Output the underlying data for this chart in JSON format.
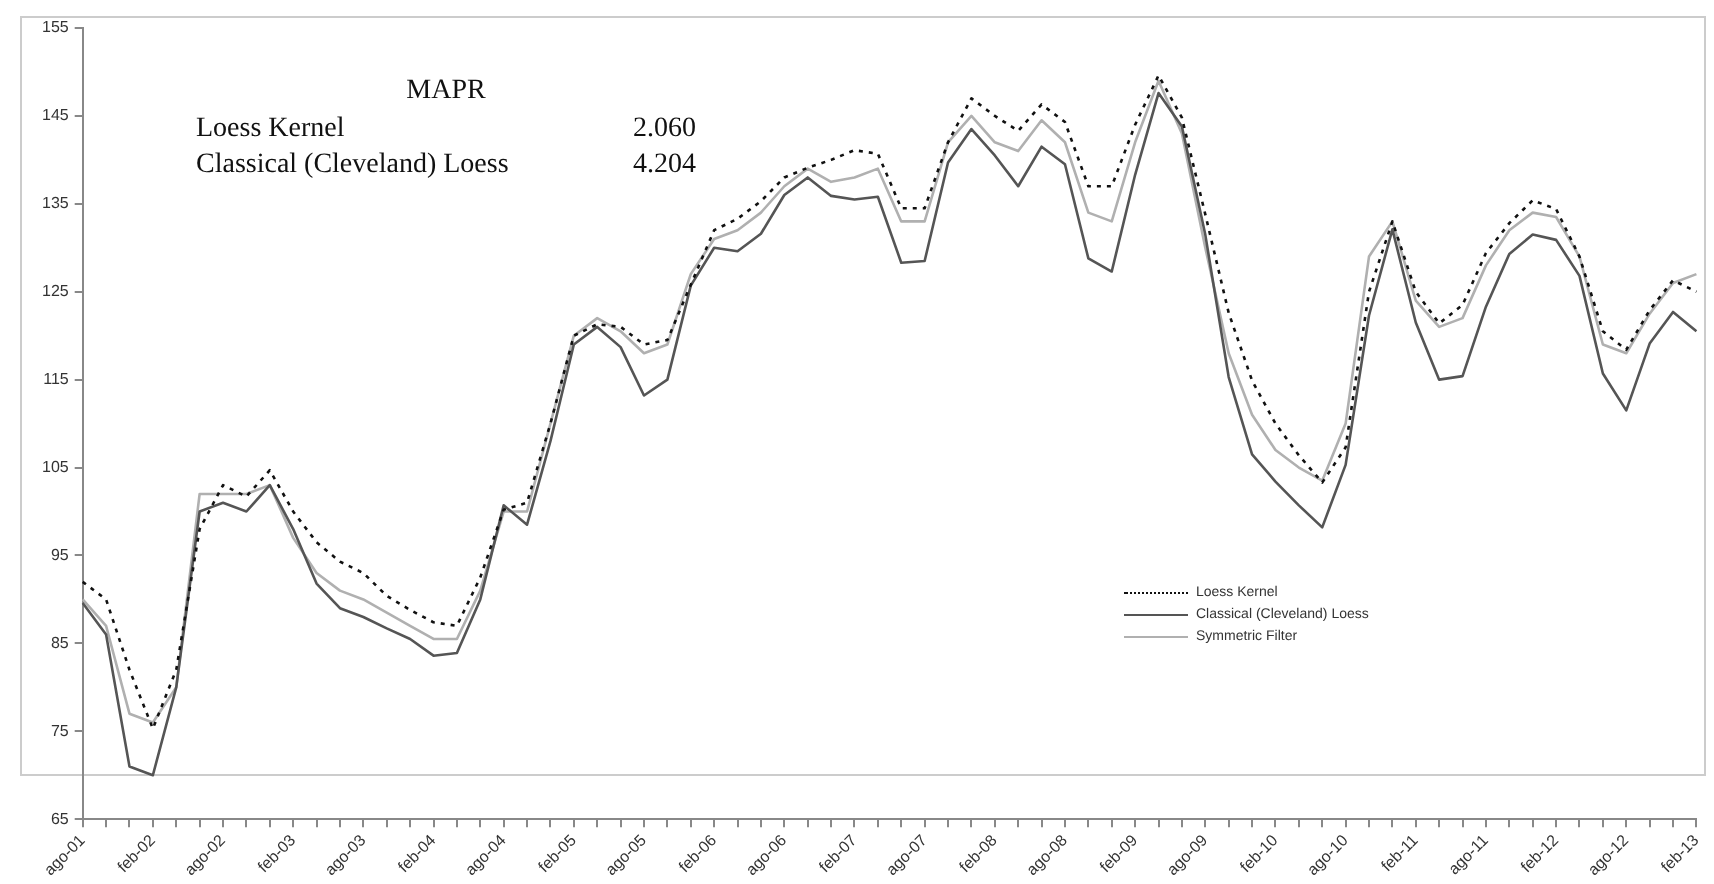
{
  "chart_data": {
    "type": "line",
    "categories": [
      "ago-01",
      null,
      null,
      "feb-02",
      null,
      null,
      "ago-02",
      null,
      null,
      "feb-03",
      null,
      null,
      "ago-03",
      null,
      null,
      "feb-04",
      null,
      null,
      "ago-04",
      null,
      null,
      "feb-05",
      null,
      null,
      "ago-05",
      null,
      null,
      "feb-06",
      null,
      null,
      "ago-06",
      null,
      null,
      "feb-07",
      null,
      null,
      "ago-07",
      null,
      null,
      "feb-08",
      null,
      null,
      "ago-08",
      null,
      null,
      "feb-09",
      null,
      null,
      "ago-09",
      null,
      null,
      "feb-10",
      null,
      null,
      "ago-10",
      null,
      null,
      "feb-11",
      null,
      null,
      "ago-11",
      null,
      null,
      "feb-12",
      null,
      null,
      "ago-12",
      null,
      null,
      "feb-13"
    ],
    "series": [
      {
        "name": "Loess Kernel",
        "color": "#111111",
        "line_style": "dotted",
        "values": [
          92,
          90,
          82,
          75.3,
          82,
          98,
          103,
          101.7,
          104.7,
          100,
          96.5,
          94.3,
          93,
          90.4,
          88.8,
          87.4,
          87,
          92.5,
          100.2,
          101,
          110,
          120,
          121.3,
          121,
          119,
          119.5,
          125.8,
          132,
          133.3,
          135.3,
          138,
          139.1,
          140,
          141.1,
          140.7,
          134.5,
          134.5,
          142,
          147,
          145,
          143.3,
          146.3,
          144.3,
          137,
          137,
          144,
          149.6,
          144.8,
          133.8,
          122.6,
          114.9,
          110,
          106.4,
          103.3,
          107.3,
          125,
          133,
          125,
          121.4,
          123.5,
          129.4,
          132.8,
          135.4,
          134.4,
          129,
          120.5,
          118.4,
          122.9,
          126.3,
          125
        ]
      },
      {
        "name": "Classical (Cleveland) Loess",
        "color": "#555555",
        "line_style": "solid",
        "values": [
          89.6,
          86,
          71,
          70,
          80,
          100,
          101,
          100,
          103,
          98,
          91.8,
          89,
          88,
          86.7,
          85.5,
          83.6,
          83.9,
          90,
          100.7,
          98.5,
          108,
          119,
          121,
          118.7,
          113.2,
          115,
          125.7,
          130,
          129.6,
          131.6,
          136,
          138,
          135.9,
          135.5,
          135.8,
          128.3,
          128.5,
          139.7,
          143.5,
          140.5,
          137,
          141.5,
          139.5,
          128.8,
          127.3,
          138.3,
          147.6,
          143.8,
          131.5,
          115.3,
          106.5,
          103.4,
          100.7,
          98.2,
          105.3,
          122.3,
          132.1,
          121.5,
          115,
          115.4,
          123.3,
          129.3,
          131.5,
          130.9,
          126.8,
          115.7,
          111.5,
          119.1,
          122.7,
          120.5
        ]
      },
      {
        "name": "Symmetric Filter",
        "color": "#b0b0b0",
        "line_style": "solid",
        "values": [
          90,
          87,
          77,
          76,
          80,
          102,
          102,
          102,
          103,
          97,
          93,
          91,
          90,
          88.5,
          87,
          85.5,
          85.5,
          91,
          100,
          100,
          110,
          120,
          122,
          120.5,
          118,
          119,
          127,
          131,
          132,
          134,
          137,
          139,
          137.5,
          138,
          139,
          133,
          133,
          142,
          145,
          142,
          141,
          144.5,
          142,
          134,
          133,
          142,
          149,
          143,
          130,
          118,
          111,
          107,
          105,
          103.5,
          110,
          129,
          133,
          124,
          121,
          122,
          128,
          132,
          134,
          133.5,
          129,
          119,
          118,
          122.5,
          126,
          127
        ]
      }
    ],
    "ylim": [
      65,
      155
    ],
    "yticks": [
      65,
      75,
      85,
      95,
      105,
      115,
      125,
      135,
      145,
      155
    ],
    "grid": false,
    "legend": "bottom right",
    "marker": "none",
    "annotations": [
      "MAPR",
      "Loess Kernel 2.060",
      "Classical (Cleveland) Loess 4.204"
    ]
  }
}
